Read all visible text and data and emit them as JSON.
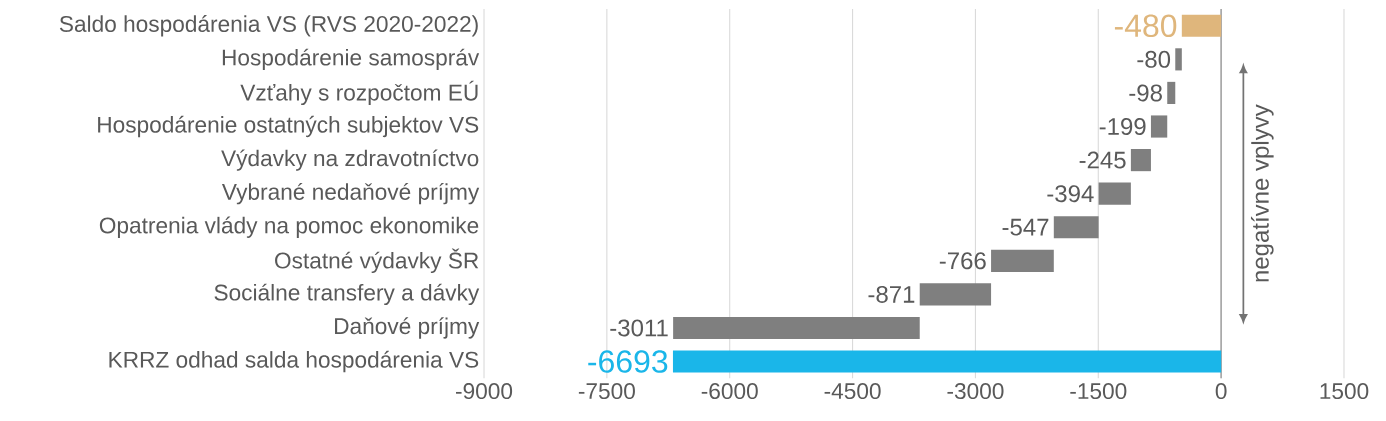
{
  "chart_data": {
    "type": "bar",
    "orientation": "horizontal",
    "categories": [
      "Saldo hospodárenia VS (RVS 2020-2022)",
      "Hospodárenie samospráv",
      "Vzťahy s rozpočtom EÚ",
      "Hospodárenie ostatných subjektov VS",
      "Výdavky na zdravotníctvo",
      "Vybrané nedaňové príjmy",
      "Opatrenia vlády na pomoc ekonomike",
      "Ostatné výdavky ŠR",
      "Sociálne transfery a dávky",
      "Daňové príjmy",
      "KRRZ odhad salda hospodárenia VS"
    ],
    "values": [
      -480,
      -80,
      -98,
      -199,
      -245,
      -394,
      -547,
      -766,
      -871,
      -3011,
      -6693
    ],
    "base": [
      0,
      -480,
      -560,
      -658,
      -857,
      -1102,
      -1496,
      -2043,
      -2809,
      -3680,
      0
    ],
    "colors": [
      "#dfb67c",
      "#7f7f7f",
      "#7f7f7f",
      "#7f7f7f",
      "#7f7f7f",
      "#7f7f7f",
      "#7f7f7f",
      "#7f7f7f",
      "#7f7f7f",
      "#7f7f7f",
      "#1ab6e9"
    ],
    "data_labels": true,
    "xlim": [
      -9000,
      1500
    ],
    "xticks": [
      -9000,
      -7500,
      -6000,
      -4500,
      -3000,
      -1500,
      0,
      1500
    ],
    "grid": "x",
    "ref_lines": [
      {
        "axis": "x",
        "value": 0,
        "color": "#a6a6a6"
      }
    ],
    "annotations": [
      "negatívne vplyvy"
    ]
  }
}
